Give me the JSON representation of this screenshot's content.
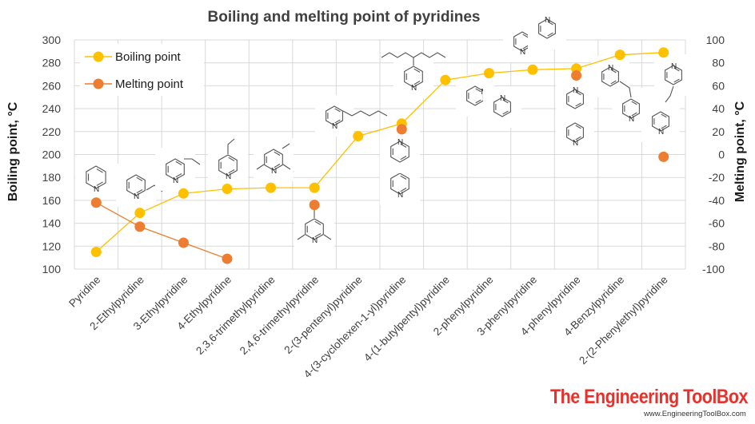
{
  "chart_data": {
    "type": "line",
    "title": "Boiling and melting point of pyridines",
    "categories": [
      "Pyridine",
      "2-Ethylpyridine",
      "3-Ethylpyridine",
      "4-Ethylpyridine",
      "2,3,6-trimethylpyridine",
      "2,4,6-trimethylpyridine",
      "2-(3-pentenyl)pyridine",
      "4-(3-cyclohexen-1-yl)pyridine",
      "4-(1-butylpentyl)pyridine",
      "2-phenylpyridine",
      "3-phenylpyridine",
      "4-phenylpyridine",
      "4-Benzylpyridine",
      "2-(2-Phenylethyl)pyridine"
    ],
    "y_left": {
      "label": "Boiling point, °C",
      "range": [
        100,
        300
      ],
      "ticks": [
        "100",
        "120",
        "140",
        "160",
        "180",
        "200",
        "220",
        "240",
        "260",
        "280",
        "300"
      ]
    },
    "y_right": {
      "label": "Melting point, °C",
      "range": [
        -100,
        100
      ],
      "ticks": [
        "-100",
        "-80",
        "-60",
        "-40",
        "-20",
        "0",
        "20",
        "40",
        "60",
        "80",
        "100"
      ]
    },
    "series": [
      {
        "name": "Boiling point",
        "axis": "left",
        "color": "#ffc000",
        "values": [
          115,
          149,
          166,
          170,
          171,
          171,
          216,
          227,
          265,
          271,
          274,
          275,
          287,
          289
        ]
      },
      {
        "name": "Melting point",
        "axis": "right",
        "color": "#ed7d31",
        "values": [
          -42,
          -63,
          -77,
          -91,
          null,
          -44,
          null,
          22,
          null,
          null,
          null,
          69,
          null,
          -2
        ]
      }
    ],
    "grid": true,
    "legend_position": "top-left"
  },
  "watermark": {
    "brand": "The Engineering ToolBox",
    "url": "www.EngineeringToolBox.com"
  },
  "structure_labels": {
    "nitrogen": "N"
  }
}
